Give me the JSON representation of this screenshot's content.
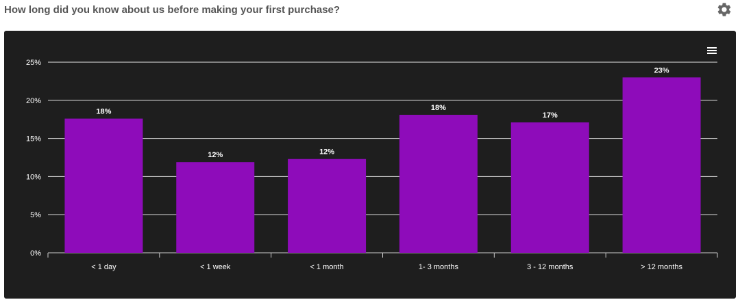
{
  "page": {
    "title": "How long did you know about us before making your first purchase?",
    "settings_icon": "gear-icon",
    "menu_icon": "hamburger-menu-icon"
  },
  "chart_data": {
    "type": "bar",
    "title": "How long did you know about us before making your first purchase?",
    "categories": [
      "< 1 day",
      "< 1 week",
      "< 1 month",
      "1- 3 months",
      "3 - 12 months",
      "> 12 months"
    ],
    "values": [
      17.6,
      11.9,
      12.3,
      18.1,
      17.1,
      23.0
    ],
    "data_labels": [
      "18%",
      "12%",
      "12%",
      "18%",
      "17%",
      "23%"
    ],
    "y_ticks": [
      0,
      5,
      10,
      15,
      20,
      25
    ],
    "y_tick_labels": [
      "0%",
      "5%",
      "10%",
      "15%",
      "20%",
      "25%"
    ],
    "ylim": [
      0,
      25
    ],
    "grid": true,
    "legend": "none",
    "colors": {
      "bar": "#8e0cba",
      "background": "#1e1e1e",
      "grid": "#e6e6e6",
      "text": "#ffffff"
    }
  }
}
